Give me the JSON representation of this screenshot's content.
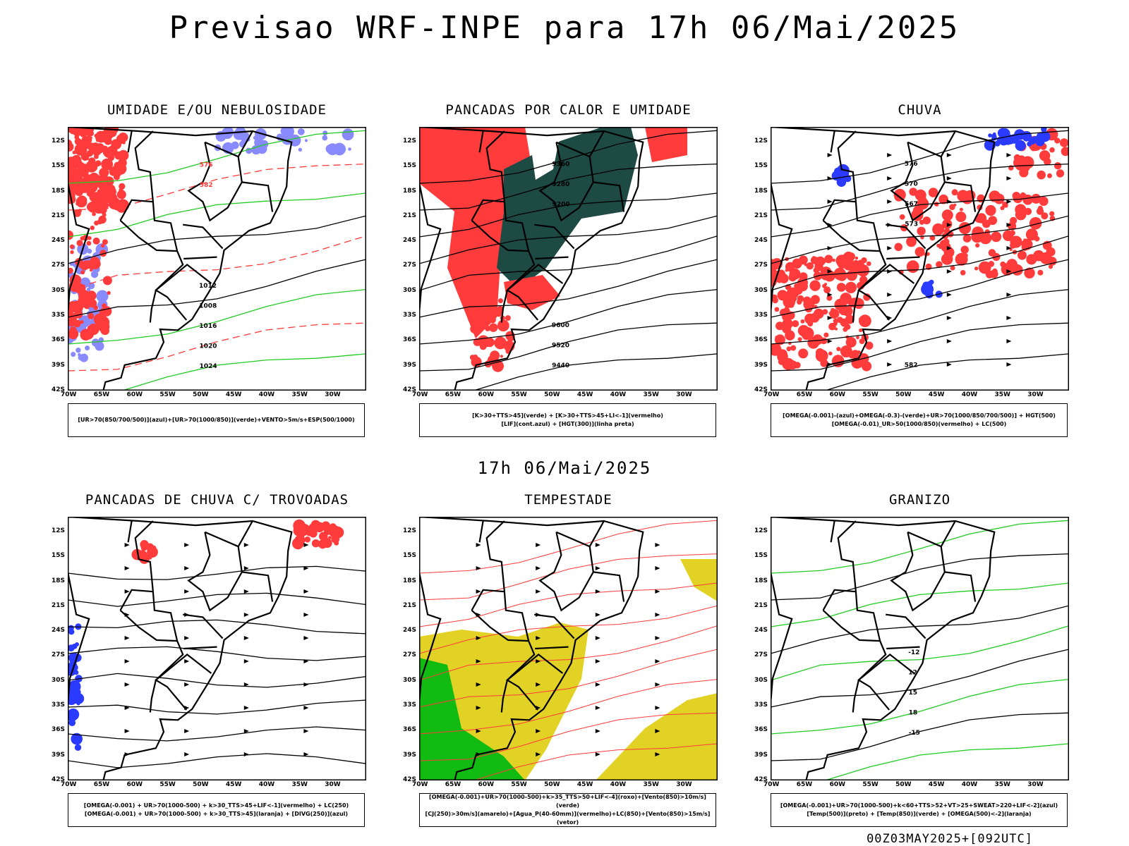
{
  "title": "Previsao WRF-INPE  para 17h 06/Mai/2025",
  "mid_title": "17h 06/Mai/2025",
  "footer": "00Z03MAY2025+[092UTC]",
  "axes": {
    "lat_labels": [
      "12S",
      "15S",
      "18S",
      "21S",
      "24S",
      "27S",
      "30S",
      "33S",
      "36S",
      "39S",
      "42S"
    ],
    "lon_labels": [
      "70W",
      "65W",
      "60W",
      "55W",
      "50W",
      "45W",
      "40W",
      "35W",
      "30W"
    ]
  },
  "panels": [
    {
      "title": "UMIDADE E/OU NEBULOSIDADE",
      "legend": [
        "[UR>70(850/700/500)](azul)+[UR>70(1000/850)](verde)+VENTO>5m/s+ESP(500/1000)"
      ],
      "contour_labels": [
        "1012",
        "1008",
        "1016",
        "1020",
        "1024",
        "576",
        "582"
      ],
      "colors": {
        "red": "#ff3b3b",
        "green": "#22cc22",
        "blue": "#8a8aff",
        "black": "#000000"
      }
    },
    {
      "title": "PANCADAS POR CALOR E UMIDADE",
      "legend": [
        "[K>30+TTS>45](verde) + [K>30+TTS>45+LI<-1](vermelho)",
        "[LIF](cont.azul) + [HGT(300)](linha preta)"
      ],
      "contour_labels": [
        "9600",
        "9520",
        "9440",
        "9360",
        "9280",
        "9200"
      ],
      "colors": {
        "red": "#ff3b3b",
        "dark": "#1e4a44",
        "blue": "#3a4aff",
        "black": "#000000"
      }
    },
    {
      "title": "CHUVA",
      "legend": [
        "[OMEGA(-0.001)-(azul)+OMEGA(-0.3)-(verde)+UR>70(1000/850/700/500)] + HGT(500)",
        "[OMEGA(-0.01)_UR>50(1000/850)(vermelho) + LC(500)"
      ],
      "contour_labels": [
        "582",
        "576",
        "570",
        "567",
        "573"
      ],
      "colors": {
        "red": "#ff3b3b",
        "blue": "#2a3aff",
        "green": "#22cc22",
        "black": "#000000"
      }
    },
    {
      "title": "PANCADAS DE CHUVA C/ TROVOADAS",
      "legend": [
        "[OMEGA(-0.001) + UR>70(1000-500) + k>30_TTS>45+LIF<-1](vermelho) + LC(250)",
        "[OMEGA(-0.001) + UR>70(1000-500) + k>30_TTS>45](laranja) + [DIVG(250)](azul)"
      ],
      "contour_labels": [],
      "colors": {
        "red": "#ff3b3b",
        "blue": "#2a3aff",
        "orange": "#ff8c1a",
        "black": "#000000"
      }
    },
    {
      "title": "TEMPESTADE",
      "legend": [
        "[OMEGA(-0.001)+UR>70(1000-500)+k>35_TTS>50+LIF<-4](roxo)+[Vento(850)>10m/s](verde)",
        "[CJ(250)>30m/s](amarelo)+[Agua_P(40-60mm)](vermelho)+LC(850)+[Vento(850)>15m/s](vetor)"
      ],
      "contour_labels": [],
      "colors": {
        "red": "#ff3b3b",
        "yellow": "#e3d226",
        "green": "#11bb11",
        "black": "#000000"
      }
    },
    {
      "title": "GRANIZO",
      "legend": [
        "[OMEGA(-0.001)+UR>70(1000-500)+k<60+TTS>52+VT>25+SWEAT>220+LIF<-2](azul)",
        "[Temp(500)](preto) + [Temp(850)](verde) + [OMEGA(500)<-2](laranja)"
      ],
      "contour_labels": [
        "-12",
        "12",
        "15",
        "18",
        "-15"
      ],
      "colors": {
        "green": "#22cc22",
        "orange": "#ff8c1a",
        "blue": "#2a3aff",
        "black": "#000000"
      }
    }
  ]
}
